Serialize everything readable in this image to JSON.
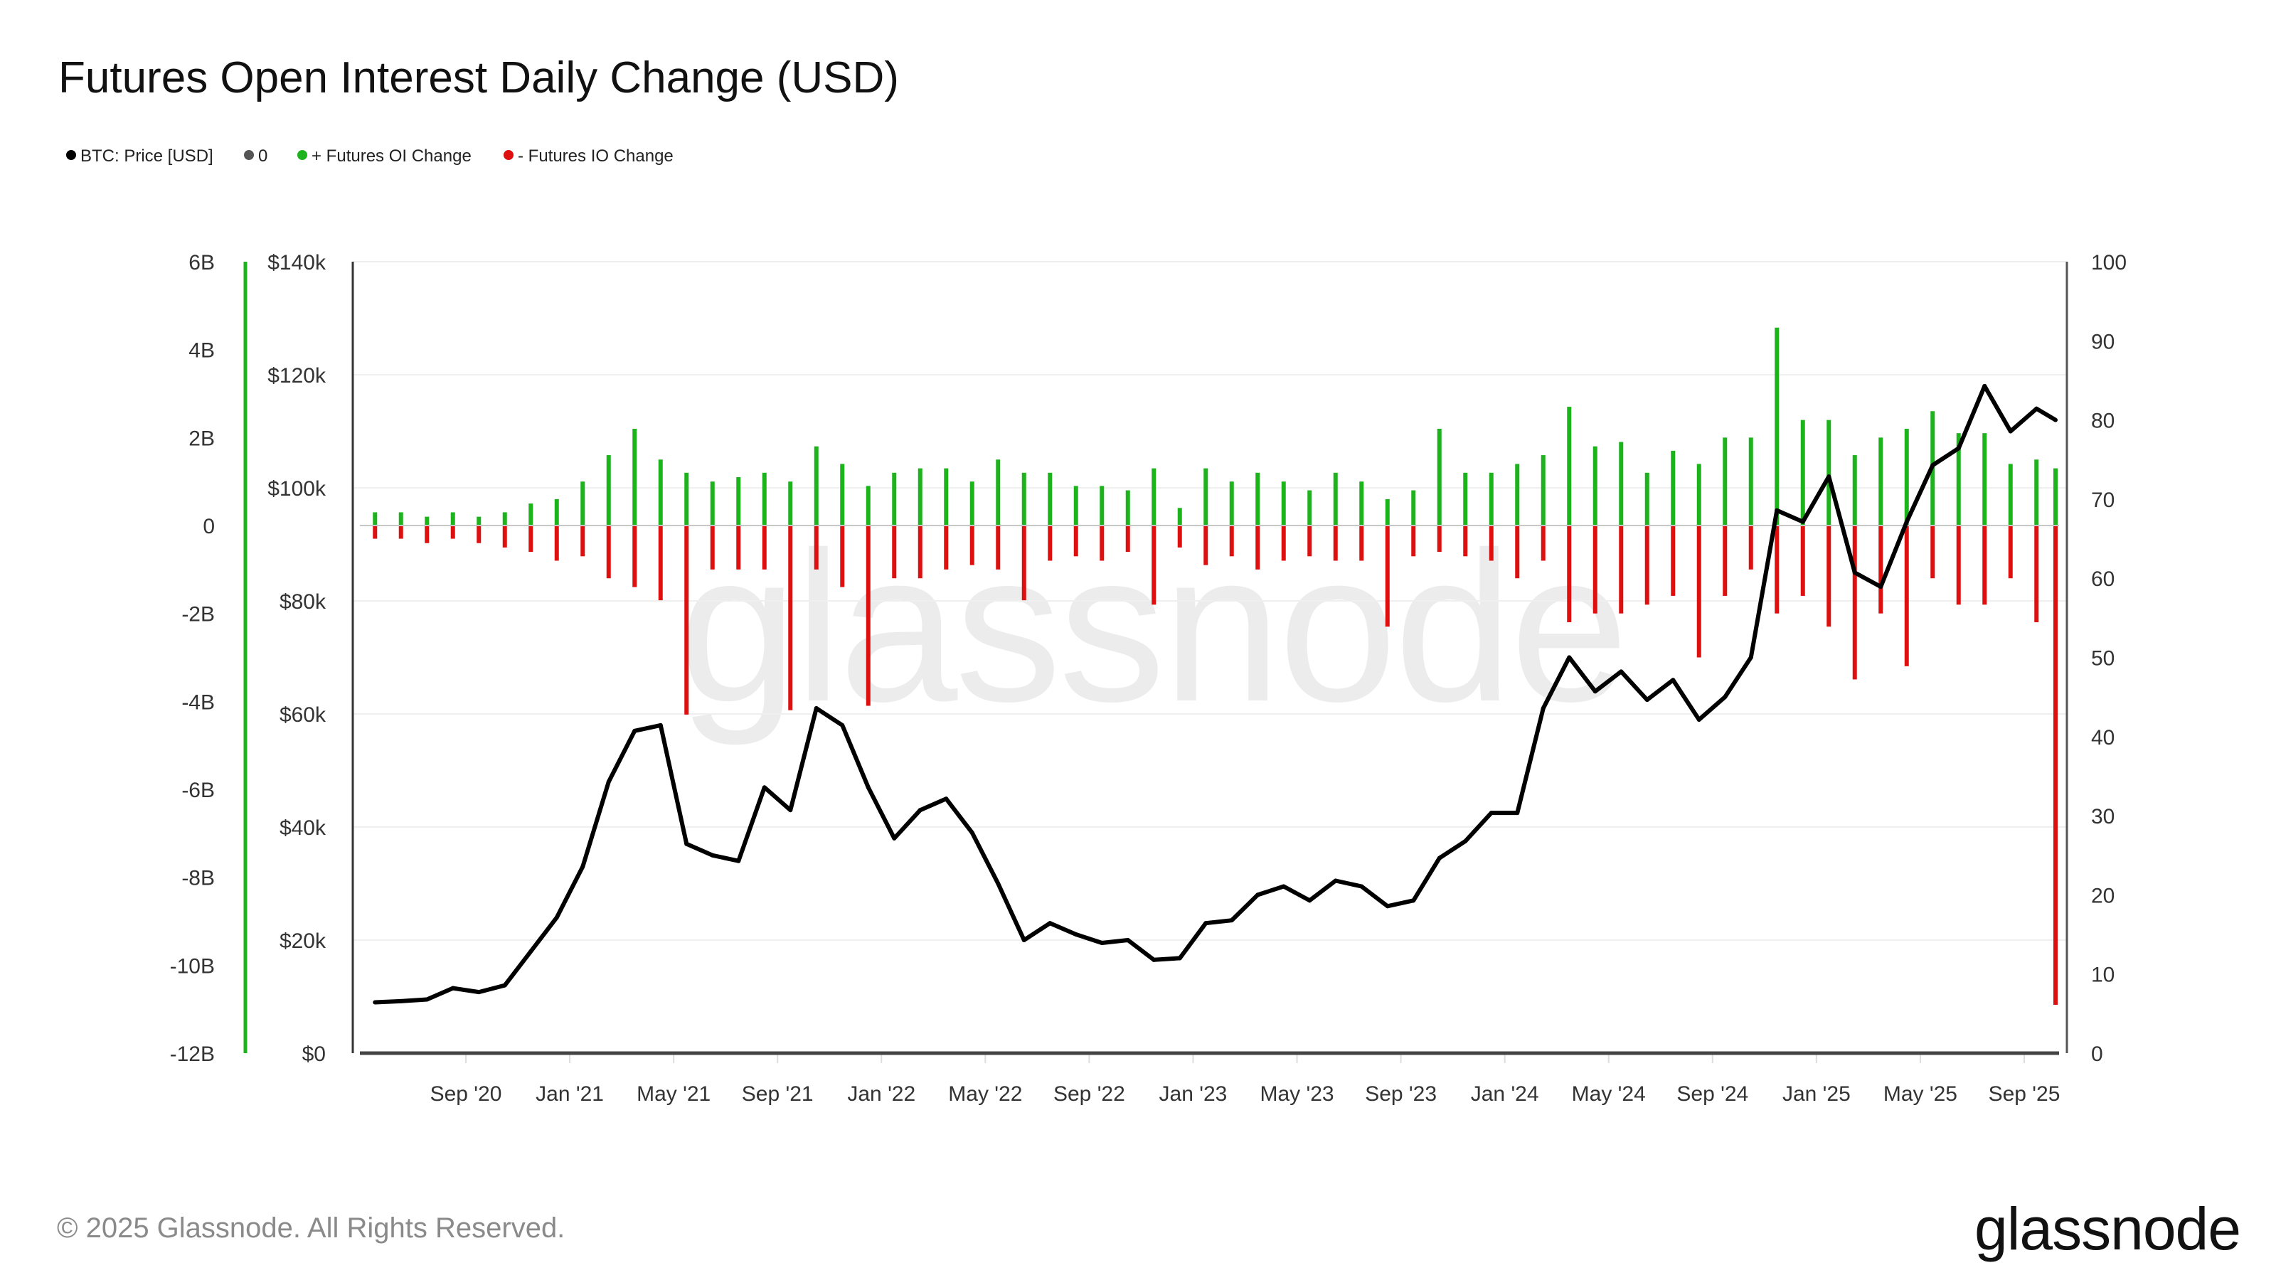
{
  "chart_data": {
    "type": "bar+line",
    "title": "Futures Open Interest Daily Change (USD)",
    "legend": {
      "placement": "top-left",
      "items": [
        {
          "label": "BTC: Price [USD]",
          "color": "#000000"
        },
        {
          "label": "0",
          "color": "#555555"
        },
        {
          "label": "+ Futures OI Change",
          "color": "#1db31d"
        },
        {
          "label": "- Futures IO Change",
          "color": "#dd0f0f"
        }
      ]
    },
    "left_axis": {
      "ticks": [
        "6B",
        "4B",
        "2B",
        "0",
        "-2B",
        "-4B",
        "-6B",
        "-8B",
        "-10B",
        "-12B"
      ],
      "range_billions": [
        -12,
        6
      ],
      "color": "#1db31d"
    },
    "price_axis": {
      "ticks": [
        "$140k",
        "$120k",
        "$100k",
        "$80k",
        "$60k",
        "$40k",
        "$20k",
        "$0"
      ],
      "range": [
        0,
        140000
      ]
    },
    "right_axis": {
      "ticks": [
        "100",
        "90",
        "80",
        "70",
        "60",
        "50",
        "40",
        "30",
        "20",
        "10",
        "0"
      ],
      "range": [
        0,
        100
      ]
    },
    "x_axis": {
      "ticks": [
        "Sep '20",
        "Jan '21",
        "May '21",
        "Sep '21",
        "Jan '22",
        "May '22",
        "Sep '22",
        "Jan '23",
        "May '23",
        "Sep '23",
        "Jan '24",
        "May '24",
        "Sep '24",
        "Jan '25",
        "May '25",
        "Sep '25"
      ],
      "range": [
        "2020-05",
        "2025-10"
      ]
    },
    "grid": true,
    "months": [
      "2020-05",
      "2020-06",
      "2020-07",
      "2020-08",
      "2020-09",
      "2020-10",
      "2020-11",
      "2020-12",
      "2021-01",
      "2021-02",
      "2021-03",
      "2021-04",
      "2021-05",
      "2021-06",
      "2021-07",
      "2021-08",
      "2021-09",
      "2021-10",
      "2021-11",
      "2021-12",
      "2022-01",
      "2022-02",
      "2022-03",
      "2022-04",
      "2022-05",
      "2022-06",
      "2022-07",
      "2022-08",
      "2022-09",
      "2022-10",
      "2022-11",
      "2022-12",
      "2023-01",
      "2023-02",
      "2023-03",
      "2023-04",
      "2023-05",
      "2023-06",
      "2023-07",
      "2023-08",
      "2023-09",
      "2023-10",
      "2023-11",
      "2023-12",
      "2024-01",
      "2024-02",
      "2024-03",
      "2024-04",
      "2024-05",
      "2024-06",
      "2024-07",
      "2024-08",
      "2024-09",
      "2024-10",
      "2024-11",
      "2024-12",
      "2025-01",
      "2025-02",
      "2025-03",
      "2025-04",
      "2025-05",
      "2025-06",
      "2025-07",
      "2025-08",
      "2025-09",
      "2025-10"
    ],
    "series": [
      {
        "name": "BTC: Price [USD]",
        "axis": "price",
        "values": [
          9000,
          9200,
          9500,
          11500,
          10800,
          12000,
          18000,
          24000,
          33000,
          48000,
          57000,
          58000,
          37000,
          35000,
          34000,
          47000,
          43000,
          61000,
          58000,
          47000,
          38000,
          43000,
          45000,
          39000,
          30000,
          20000,
          23000,
          21000,
          19500,
          20000,
          16500,
          16800,
          23000,
          23500,
          28000,
          29500,
          27000,
          30500,
          29500,
          26000,
          27000,
          34500,
          37500,
          42500,
          42500,
          61000,
          70000,
          64000,
          67500,
          62500,
          66000,
          59000,
          63000,
          70000,
          96000,
          94000,
          102000,
          85000,
          82500,
          94000,
          104000,
          107000,
          118000,
          110000,
          114000,
          112000
        ]
      },
      {
        "name": "+ Futures OI Change",
        "axis": "left",
        "unit": "billion USD",
        "values": [
          0.3,
          0.3,
          0.2,
          0.3,
          0.2,
          0.3,
          0.5,
          0.6,
          1.0,
          1.6,
          2.2,
          1.5,
          1.2,
          1.0,
          1.1,
          1.2,
          1.0,
          1.8,
          1.4,
          0.9,
          1.2,
          1.3,
          1.3,
          1.0,
          1.5,
          1.2,
          1.2,
          0.9,
          0.9,
          0.8,
          1.3,
          0.4,
          1.3,
          1.0,
          1.2,
          1.0,
          0.8,
          1.2,
          1.0,
          0.6,
          0.8,
          2.2,
          1.2,
          1.2,
          1.4,
          1.6,
          2.7,
          1.8,
          1.9,
          1.2,
          1.7,
          1.4,
          2.0,
          2.0,
          4.5,
          2.4,
          2.4,
          1.6,
          2.0,
          2.2,
          2.6,
          2.1,
          2.1,
          1.4,
          1.5,
          1.3
        ]
      },
      {
        "name": "- Futures IO Change",
        "axis": "left",
        "unit": "billion USD",
        "values": [
          -0.3,
          -0.3,
          -0.4,
          -0.3,
          -0.4,
          -0.5,
          -0.6,
          -0.8,
          -0.7,
          -1.2,
          -1.4,
          -1.7,
          -4.3,
          -1.0,
          -1.0,
          -1.0,
          -4.2,
          -1.0,
          -1.4,
          -4.1,
          -1.2,
          -1.2,
          -1.0,
          -0.9,
          -1.0,
          -1.7,
          -0.8,
          -0.7,
          -0.8,
          -0.6,
          -1.8,
          -0.5,
          -0.9,
          -0.7,
          -1.0,
          -0.8,
          -0.7,
          -0.8,
          -0.8,
          -2.3,
          -0.7,
          -0.6,
          -0.7,
          -0.8,
          -1.2,
          -0.8,
          -2.2,
          -2.0,
          -2.0,
          -1.8,
          -1.6,
          -3.0,
          -1.6,
          -1.0,
          -2.0,
          -1.6,
          -2.3,
          -3.5,
          -2.0,
          -3.2,
          -1.2,
          -1.8,
          -1.8,
          -1.2,
          -2.2,
          -10.9
        ]
      }
    ]
  },
  "watermark": "glassnode",
  "footer": {
    "copyright": "© 2025 Glassnode. All Rights Reserved.",
    "logo": "glassnode"
  }
}
